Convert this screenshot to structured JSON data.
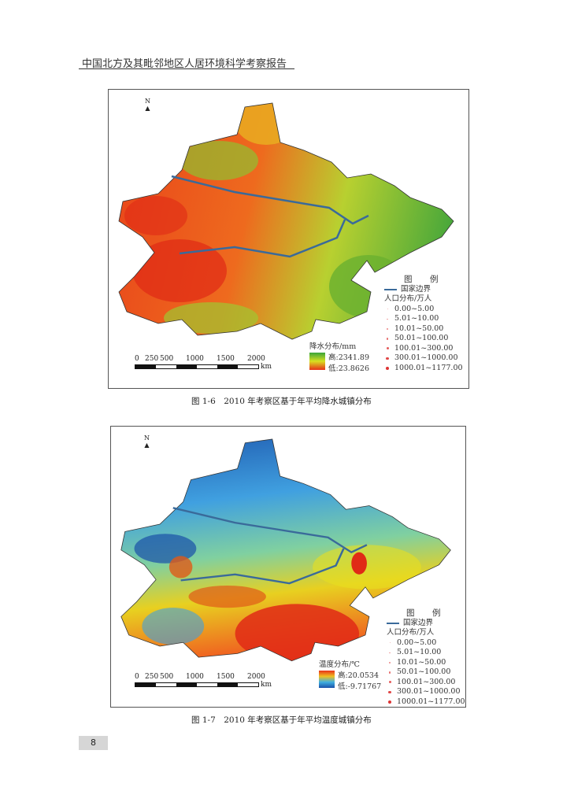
{
  "header": {
    "title": "中国北方及其毗邻地区人居环境科学考察报告"
  },
  "figures": [
    {
      "caption": "图 1-6　2010 年考察区基于年平均降水城镇分布",
      "ramp": {
        "title": "降水分布/mm",
        "high": "高:2341.89",
        "low": "低:23.8626",
        "colors": [
          "#3aa53a",
          "#d8e020",
          "#e8301a"
        ]
      },
      "legend": {
        "title": "图　例",
        "border_label": "国家边界",
        "pop_title": "人口分布/万人",
        "classes": [
          "0.00~5.00",
          "5.01~10.00",
          "10.01~50.00",
          "50.01~100.00",
          "100.01~300.00",
          "300.01~1000.00",
          "1000.01~1177.00"
        ]
      },
      "scale": {
        "ticks": [
          "0",
          "250",
          "500",
          "1000",
          "1500",
          "2000"
        ],
        "unit": "km"
      },
      "north": "N"
    },
    {
      "caption": "图 1-7　2010 年考察区基于年平均温度城镇分布",
      "ramp": {
        "title": "温度分布/℃",
        "high": "高:20.0534",
        "low": "低:-9.71767",
        "colors": [
          "#e8301a",
          "#f0c020",
          "#40b0e0",
          "#1a50a8"
        ]
      },
      "legend": {
        "title": "图　例",
        "border_label": "国家边界",
        "pop_title": "人口分布/万人",
        "classes": [
          "0.00~5.00",
          "5.01~10.00",
          "10.01~50.00",
          "50.01~100.00",
          "100.01~300.00",
          "300.01~1000.00",
          "1000.01~1177.00"
        ]
      },
      "scale": {
        "ticks": [
          "0",
          "250",
          "500",
          "1000",
          "1500",
          "2000"
        ],
        "unit": "km"
      },
      "north": "N"
    }
  ],
  "page_number": "8"
}
